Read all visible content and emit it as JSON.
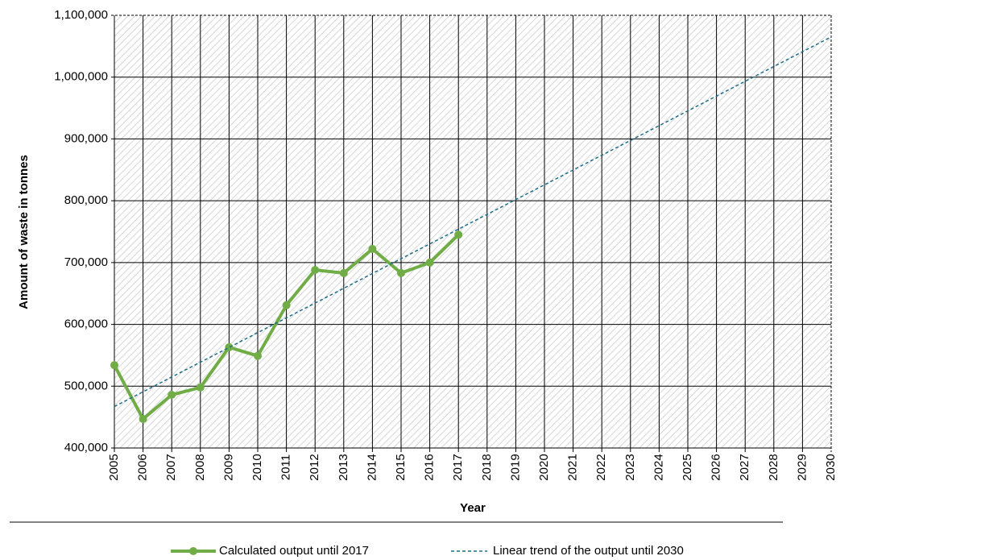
{
  "chart_data": {
    "type": "line",
    "x_label": "Year",
    "y_label": "Amount of waste in tonnes",
    "xlim": [
      2005,
      2030
    ],
    "xticks": [
      2005,
      2006,
      2007,
      2008,
      2009,
      2010,
      2011,
      2012,
      2013,
      2014,
      2015,
      2016,
      2017,
      2018,
      2019,
      2020,
      2021,
      2022,
      2023,
      2024,
      2025,
      2026,
      2027,
      2028,
      2029,
      2030
    ],
    "ylim": [
      400000,
      1100000
    ],
    "yticks": [
      {
        "value": 400000,
        "label": "400,000"
      },
      {
        "value": 500000,
        "label": "500,000"
      },
      {
        "value": 600000,
        "label": "600,000"
      },
      {
        "value": 700000,
        "label": "700,000"
      },
      {
        "value": 800000,
        "label": "800,000"
      },
      {
        "value": 900000,
        "label": "900,000"
      },
      {
        "value": 1000000,
        "label": "1,000,000"
      },
      {
        "value": 1100000,
        "label": "1,100,000"
      }
    ],
    "grid": true,
    "legend": "bottom",
    "series": [
      {
        "name": "Calculated output until 2017",
        "color": "#70ad47",
        "style": "solid",
        "x": [
          2005,
          2006,
          2007,
          2008,
          2009,
          2010,
          2011,
          2012,
          2013,
          2014,
          2015,
          2016,
          2017
        ],
        "values": [
          534000,
          447000,
          486000,
          498000,
          563000,
          549000,
          631000,
          688000,
          683000,
          722000,
          683000,
          700000,
          745000
        ]
      },
      {
        "name": "Linear trend of the output until 2030",
        "color": "#1f6e8c",
        "style": "dashed",
        "x": [
          2005,
          2030
        ],
        "values": [
          467000,
          1065000
        ]
      }
    ]
  }
}
